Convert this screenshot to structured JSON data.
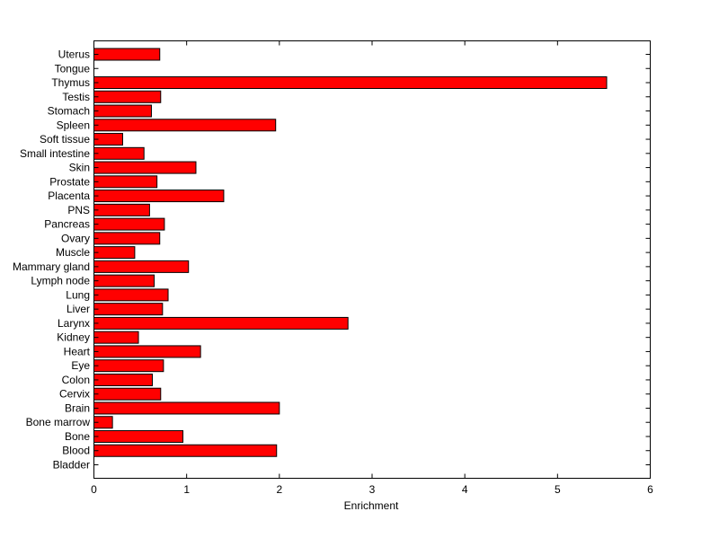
{
  "chart_data": {
    "type": "bar",
    "orientation": "horizontal",
    "title": "",
    "xlabel": "Enrichment",
    "ylabel": "",
    "xlim": [
      0,
      6
    ],
    "xticks": [
      "0",
      "1",
      "2",
      "3",
      "4",
      "5",
      "6"
    ],
    "grid": false,
    "bar_color": "#ff0000",
    "categories": [
      "Bladder",
      "Blood",
      "Bone",
      "Bone marrow",
      "Brain",
      "Cervix",
      "Colon",
      "Eye",
      "Heart",
      "Kidney",
      "Larynx",
      "Liver",
      "Lung",
      "Lymph node",
      "Mammary gland",
      "Muscle",
      "Ovary",
      "Pancreas",
      "PNS",
      "Placenta",
      "Prostate",
      "Skin",
      "Small intestine",
      "Soft tissue",
      "Spleen",
      "Stomach",
      "Testis",
      "Thymus",
      "Tongue",
      "Uterus"
    ],
    "values": [
      0,
      1.97,
      0.96,
      0.2,
      2.0,
      0.72,
      0.63,
      0.75,
      1.15,
      0.48,
      2.74,
      0.74,
      0.8,
      0.65,
      1.02,
      0.44,
      0.71,
      0.76,
      0.6,
      1.4,
      0.68,
      1.1,
      0.54,
      0.31,
      1.96,
      0.62,
      0.72,
      5.53,
      0,
      0.71
    ]
  }
}
